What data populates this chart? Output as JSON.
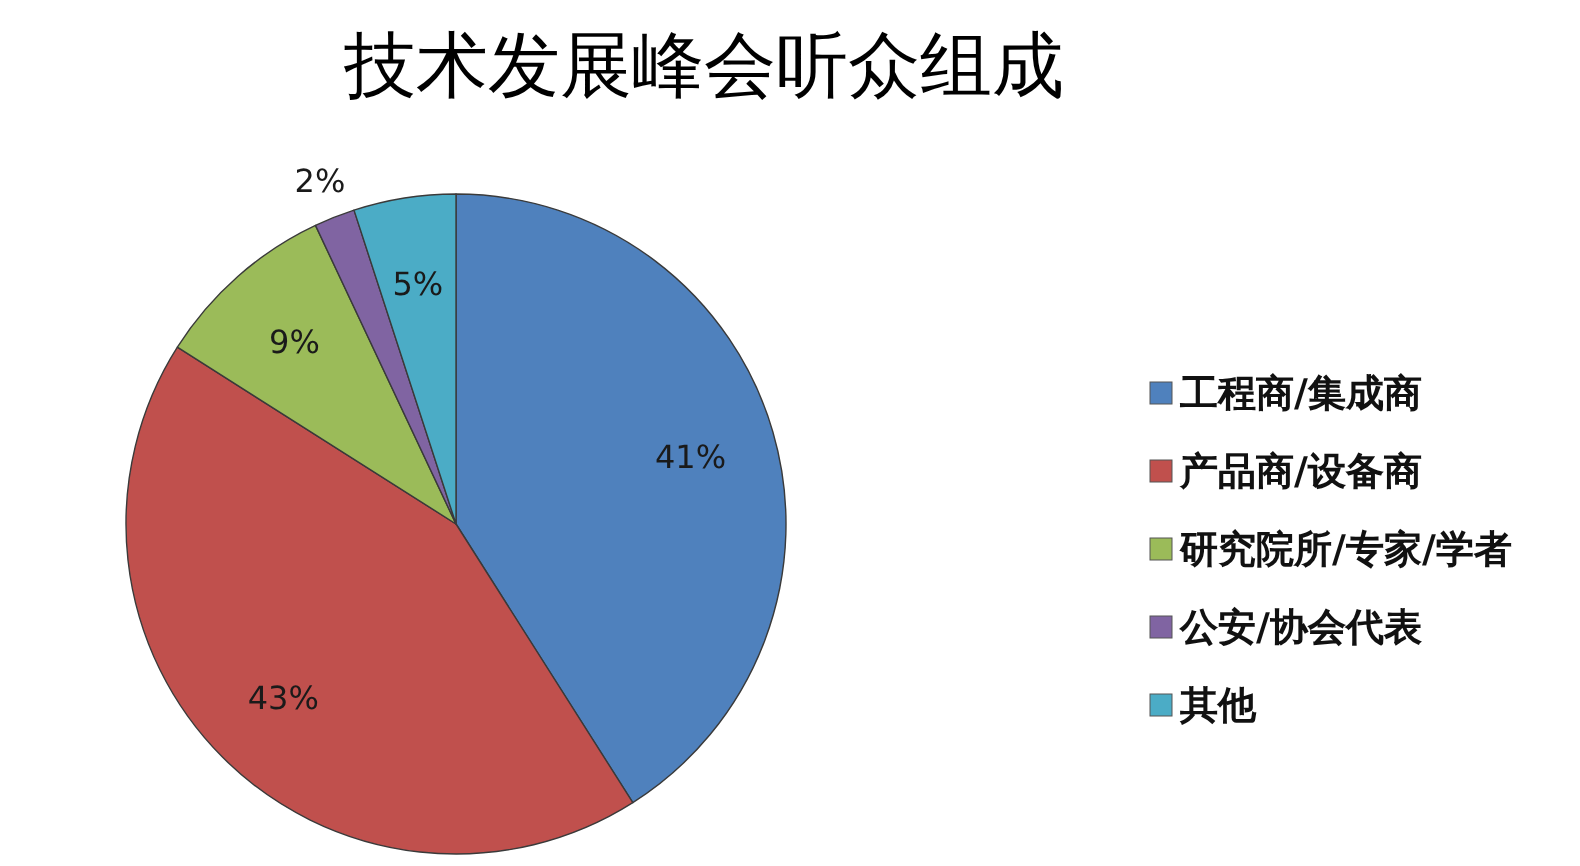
{
  "chart_data": {
    "type": "pie",
    "title": "技术发展峰会听众组成",
    "categories": [
      "工程商/集成商",
      "产品商/设备商",
      "研究院所/专家/学者",
      "公安/协会代表",
      "其他"
    ],
    "values": [
      41,
      43,
      9,
      2,
      5
    ],
    "colors": [
      "#4f81bd",
      "#c0504d",
      "#9bbb59",
      "#8064a2",
      "#4bacc6"
    ],
    "value_labels": [
      "41%",
      "43%",
      "9%",
      "2%",
      "5%"
    ],
    "legend": "right"
  }
}
